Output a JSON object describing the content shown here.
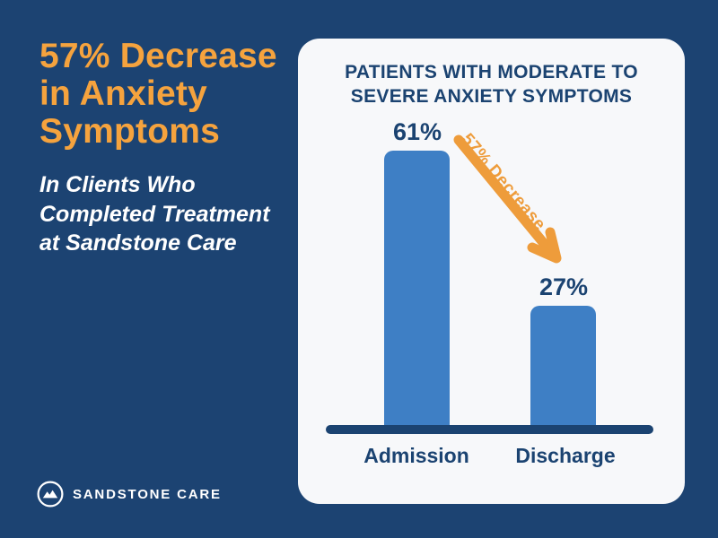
{
  "colors": {
    "background": "#1C4372",
    "navy": "#1B4371",
    "orange_heading": "#F5A33E",
    "orange_arrow": "#EE9C3B",
    "bar_blue": "#3E7FC5",
    "card_background": "#F7F8FA",
    "white": "#FFFFFF"
  },
  "left_panel": {
    "heading": "57% Decrease\nin Anxiety\nSymptoms",
    "subheading": "In Clients Who\nCompleted Treatment\nat Sandstone Care"
  },
  "footer": {
    "brand_name": "SANDSTONE CARE",
    "logo_icon": "mountain-circle-icon"
  },
  "chart_card": {
    "title": "PATIENTS WITH MODERATE TO\nSEVERE ANXIETY SYMPTOMS"
  },
  "chart_data": {
    "type": "bar",
    "title": "PATIENTS WITH MODERATE TO SEVERE ANXIETY SYMPTOMS",
    "categories": [
      "Admission",
      "Discharge"
    ],
    "values": [
      61,
      27
    ],
    "value_labels": [
      "61%",
      "27%"
    ],
    "annotation": "57% Decrease",
    "annotation_shape": "diagonal-arrow-down-right",
    "ylim": [
      0,
      100
    ],
    "grid": false,
    "legend": false,
    "bar_color": "#3E7FC5",
    "axis_color": "#1B4371"
  }
}
